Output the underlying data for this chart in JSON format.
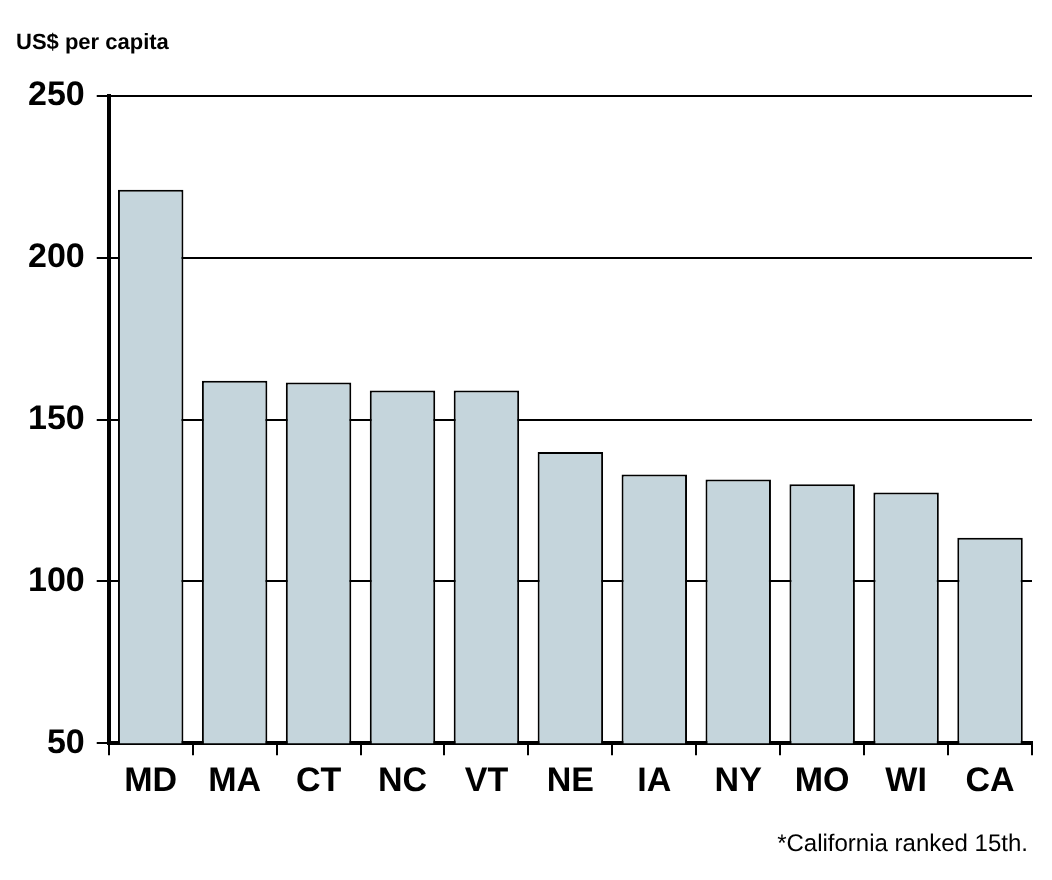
{
  "chart_data": {
    "type": "bar",
    "ylabel": "US$ per capita",
    "categories": [
      "MD",
      "MA",
      "CT",
      "NC",
      "VT",
      "NE",
      "IA",
      "NY",
      "MO",
      "WI",
      "CA"
    ],
    "values": [
      221,
      162,
      161.5,
      159,
      159,
      140,
      133,
      131.5,
      130,
      127.5,
      113.5
    ],
    "color": "#c5d5dc",
    "ylim": [
      50,
      250
    ],
    "yticks": [
      50,
      100,
      150,
      200,
      250
    ],
    "grid": "y",
    "legend": false,
    "annotations": [
      "*California ranked 15th."
    ]
  }
}
